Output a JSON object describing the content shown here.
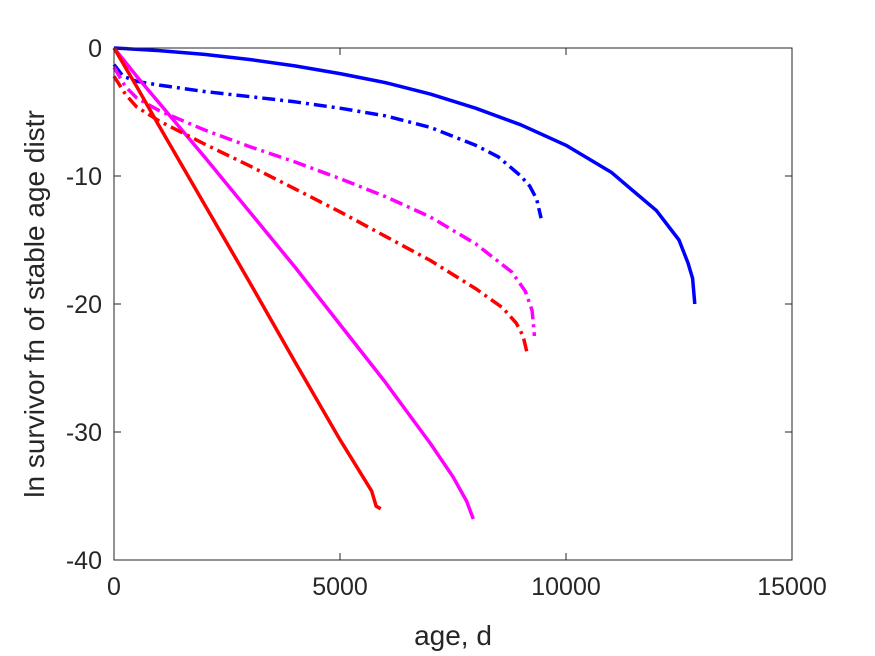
{
  "chart_data": {
    "type": "line",
    "title": "",
    "xlabel": "age, d",
    "ylabel": "ln survivor fn of stable age distr",
    "xlim": [
      0,
      15000
    ],
    "ylim": [
      -40,
      0
    ],
    "xticks": [
      0,
      5000,
      10000,
      15000
    ],
    "yticks": [
      0,
      -10,
      -20,
      -30,
      -40
    ],
    "xtick_labels": [
      "0",
      "5000",
      "10000",
      "15000"
    ],
    "ytick_labels": [
      "0",
      "-10",
      "-20",
      "-30",
      "-40"
    ],
    "grid": false,
    "legend": "none",
    "series": [
      {
        "color": "#0000ff",
        "style": "solid",
        "x": [
          0,
          1000,
          2000,
          3000,
          4000,
          5000,
          6000,
          7000,
          8000,
          9000,
          10000,
          11000,
          12000,
          12500,
          12700,
          12800,
          12850
        ],
        "y": [
          0,
          -0.2,
          -0.5,
          -0.9,
          -1.4,
          -2.0,
          -2.7,
          -3.6,
          -4.7,
          -6.0,
          -7.6,
          -9.7,
          -12.7,
          -15.0,
          -16.8,
          -18.0,
          -20.0
        ]
      },
      {
        "color": "#0000ff",
        "style": "dashdot",
        "x": [
          0,
          200,
          500,
          1000,
          2000,
          3000,
          4000,
          5000,
          6000,
          7000,
          8000,
          8500,
          9000,
          9200,
          9350,
          9450
        ],
        "y": [
          -1.3,
          -2.2,
          -2.6,
          -2.9,
          -3.4,
          -3.8,
          -4.2,
          -4.7,
          -5.3,
          -6.2,
          -7.6,
          -8.5,
          -10.0,
          -10.8,
          -11.8,
          -13.3
        ]
      },
      {
        "color": "#ff00ff",
        "style": "solid",
        "x": [
          0,
          500,
          1000,
          2000,
          3000,
          4000,
          5000,
          6000,
          7000,
          7500,
          7800,
          7950
        ],
        "y": [
          0,
          -2.2,
          -4.3,
          -8.5,
          -12.8,
          -17.1,
          -21.6,
          -26.1,
          -30.9,
          -33.5,
          -35.4,
          -36.8
        ]
      },
      {
        "color": "#ff00ff",
        "style": "dashdot",
        "x": [
          0,
          250,
          500,
          1000,
          2000,
          3000,
          4000,
          5000,
          6000,
          7000,
          8000,
          8800,
          9100,
          9250,
          9300
        ],
        "y": [
          -1.5,
          -3.0,
          -3.9,
          -4.9,
          -6.4,
          -7.7,
          -8.9,
          -10.2,
          -11.6,
          -13.2,
          -15.3,
          -17.5,
          -19.0,
          -20.5,
          -22.5
        ]
      },
      {
        "color": "#ff0000",
        "style": "solid",
        "x": [
          0,
          500,
          1000,
          2000,
          3000,
          4000,
          5000,
          5700,
          5800,
          5900
        ],
        "y": [
          0,
          -3.0,
          -6.1,
          -12.2,
          -18.3,
          -24.5,
          -30.6,
          -34.6,
          -35.8,
          -36.0
        ]
      },
      {
        "color": "#ff0000",
        "style": "dashdot",
        "x": [
          0,
          250,
          500,
          1000,
          2000,
          3000,
          4000,
          5000,
          6000,
          7000,
          8000,
          8600,
          8900,
          9050,
          9150
        ],
        "y": [
          -2.2,
          -3.6,
          -4.6,
          -5.7,
          -7.5,
          -9.2,
          -11.0,
          -12.8,
          -14.7,
          -16.6,
          -18.8,
          -20.3,
          -21.5,
          -22.5,
          -24.0
        ]
      }
    ]
  }
}
